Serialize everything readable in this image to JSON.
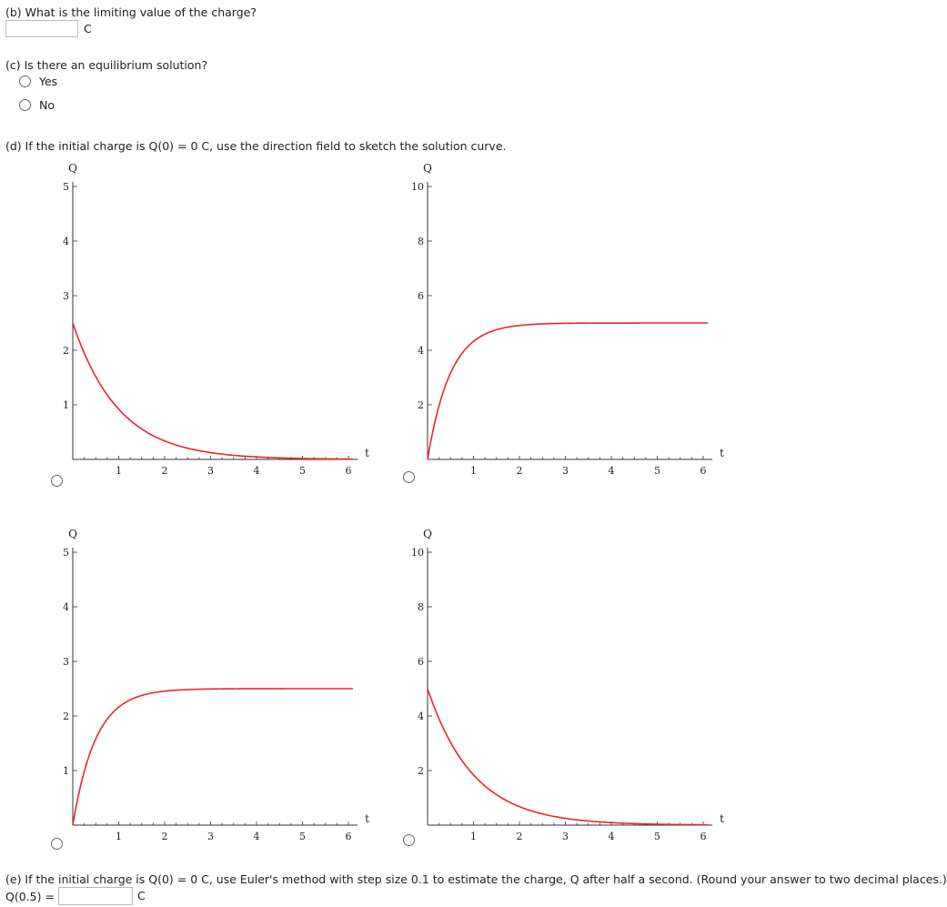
{
  "part_b": {
    "question": "(b) What is the limiting value of the charge?",
    "answer_value": "",
    "unit": "C"
  },
  "part_c": {
    "question": "(c) Is there an equilibrium solution?",
    "options": [
      "Yes",
      "No"
    ]
  },
  "part_d": {
    "question": "(d) If the initial charge is Q(0) = 0 C, use the direction field to sketch the solution curve."
  },
  "chart_data": [
    {
      "type": "line",
      "xlabel": "t",
      "ylabel": "Q",
      "xlim": [
        0,
        6.2
      ],
      "ylim": [
        0,
        5
      ],
      "xticks": [
        "1",
        "2",
        "3",
        "4",
        "5",
        "6"
      ],
      "yticks": [
        "1",
        "2",
        "3",
        "4",
        "5"
      ],
      "series": [
        {
          "function": "Q = 2.5*exp(-t)",
          "color": "#e8262a"
        }
      ]
    },
    {
      "type": "line",
      "xlabel": "t",
      "ylabel": "Q",
      "xlim": [
        0,
        6.2
      ],
      "ylim": [
        0,
        10
      ],
      "xticks": [
        "1",
        "2",
        "3",
        "4",
        "5",
        "6"
      ],
      "yticks": [
        "2",
        "4",
        "6",
        "8",
        "10"
      ],
      "series": [
        {
          "function": "Q = 5*(1-exp(-2*t))",
          "color": "#e8262a"
        }
      ]
    },
    {
      "type": "line",
      "xlabel": "t",
      "ylabel": "Q",
      "xlim": [
        0,
        6.2
      ],
      "ylim": [
        0,
        5
      ],
      "xticks": [
        "1",
        "2",
        "3",
        "4",
        "5",
        "6"
      ],
      "yticks": [
        "1",
        "2",
        "3",
        "4",
        "5"
      ],
      "series": [
        {
          "function": "Q = 2.5*(1-exp(-2*t))",
          "color": "#e8262a"
        }
      ]
    },
    {
      "type": "line",
      "xlabel": "t",
      "ylabel": "Q",
      "xlim": [
        0,
        6.2
      ],
      "ylim": [
        0,
        10
      ],
      "xticks": [
        "1",
        "2",
        "3",
        "4",
        "5",
        "6"
      ],
      "yticks": [
        "2",
        "4",
        "6",
        "8",
        "10"
      ],
      "series": [
        {
          "function": "Q = 5*exp(-t)",
          "color": "#e8262a"
        }
      ]
    }
  ],
  "part_e": {
    "question": "(e) If the initial charge is Q(0) = 0 C, use Euler's method with step size 0.1 to estimate the charge, Q after half a second. (Round your answer to two decimal places.)",
    "answer_label": "Q(0.5) =",
    "answer_value": "",
    "unit": "C"
  }
}
